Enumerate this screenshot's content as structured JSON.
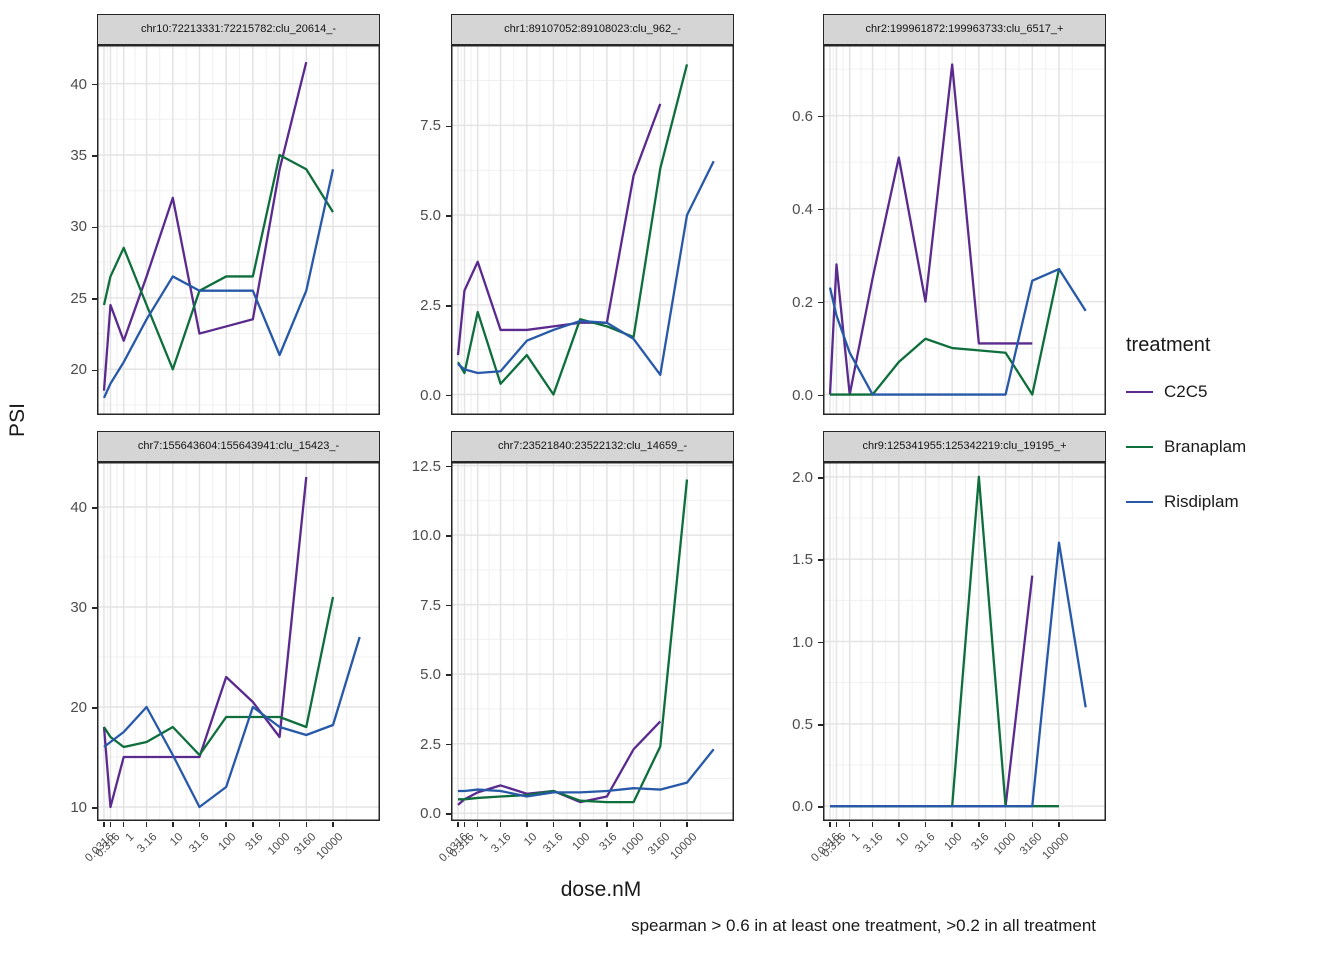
{
  "figure": {
    "ylabel": "PSI",
    "xlabel": "dose.nM",
    "caption": "spearman > 0.6 in at least one treatment, >0.2 in all treatment"
  },
  "legend": {
    "title": "treatment",
    "entries": [
      {
        "label": "C2C5",
        "color": "#5a2a8e"
      },
      {
        "label": "Branaplam",
        "color": "#0e6e3c"
      },
      {
        "label": "Risdiplam",
        "color": "#2759a8"
      }
    ]
  },
  "chart_data": {
    "type": "line",
    "x_scale": "pseudo-log (asinh)",
    "x": [
      0.0316,
      0.316,
      1,
      3.16,
      10,
      31.6,
      100,
      316,
      1000,
      3160,
      10000,
      31600
    ],
    "x_tick_labels": [
      "0.0316",
      "0.316",
      "1",
      "3.16",
      "10",
      "31.6",
      "100",
      "316",
      "1000",
      "3160",
      "10000"
    ],
    "xlabel": "dose.nM",
    "ylabel": "PSI",
    "legend_position": "right",
    "grid": "major and minor, light gray on white (theme_bw)",
    "panels": [
      {
        "title": "chr10:72213331:72215782:clu_20614_-",
        "ylim": [
          16.8,
          42.7
        ],
        "yticks": [
          20,
          25,
          30,
          35,
          40
        ],
        "ytick_labels": [
          "20",
          "25",
          "30",
          "35",
          "40"
        ],
        "series": [
          {
            "name": "C2C5",
            "values": [
              18.5,
              24.5,
              22,
              26.5,
              32,
              22.5,
              23,
              23.5,
              34,
              41.5,
              null,
              null
            ]
          },
          {
            "name": "Branaplam",
            "values": [
              24.5,
              26.5,
              28.5,
              24.5,
              20,
              25.5,
              26.5,
              26.5,
              35,
              34,
              31,
              null
            ]
          },
          {
            "name": "Risdiplam",
            "values": [
              18,
              19,
              20.5,
              23.5,
              26.5,
              25.5,
              25.5,
              25.5,
              21,
              25.5,
              34,
              null
            ]
          }
        ]
      },
      {
        "title": "chr1:89107052:89108023:clu_962_-",
        "ylim": [
          -0.57,
          9.74
        ],
        "yticks": [
          0,
          2.5,
          5,
          7.5
        ],
        "ytick_labels": [
          "0.0",
          "2.5",
          "5.0",
          "7.5"
        ],
        "series": [
          {
            "name": "C2C5",
            "values": [
              1.1,
              2.9,
              3.7,
              1.8,
              1.8,
              1.9,
              2.0,
              2.0,
              6.1,
              8.1,
              null,
              null
            ]
          },
          {
            "name": "Branaplam",
            "values": [
              0.9,
              0.6,
              2.3,
              0.3,
              1.1,
              0,
              2.1,
              1.9,
              1.6,
              6.3,
              9.2,
              null
            ]
          },
          {
            "name": "Risdiplam",
            "values": [
              0.85,
              0.7,
              0.6,
              0.65,
              1.5,
              1.8,
              2.05,
              2.0,
              1.55,
              0.55,
              5.0,
              6.5
            ]
          }
        ]
      },
      {
        "title": "chr2:199961872:199963733:clu_6517_+",
        "ylim": [
          -0.044,
          0.752
        ],
        "yticks": [
          0,
          0.2,
          0.4,
          0.6
        ],
        "ytick_labels": [
          "0.0",
          "0.2",
          "0.4",
          "0.6"
        ],
        "series": [
          {
            "name": "C2C5",
            "values": [
              0,
              0.28,
              0,
              0.25,
              0.51,
              0.2,
              0.71,
              0.11,
              0.11,
              0.11,
              null,
              null
            ]
          },
          {
            "name": "Branaplam",
            "values": [
              0,
              0,
              0,
              0,
              0.07,
              0.12,
              0.1,
              0.095,
              0.09,
              0,
              0.27,
              null
            ]
          },
          {
            "name": "Risdiplam",
            "values": [
              0.23,
              0.17,
              0.09,
              0,
              0,
              0,
              0,
              0,
              0,
              0.245,
              0.27,
              0.18
            ]
          }
        ]
      },
      {
        "title": "chr7:155643604:155643941:clu_15423_-",
        "ylim": [
          8.6,
          44.5
        ],
        "yticks": [
          10,
          20,
          30,
          40
        ],
        "ytick_labels": [
          "10",
          "20",
          "30",
          "40"
        ],
        "series": [
          {
            "name": "C2C5",
            "values": [
              18,
              10,
              15,
              15,
              15,
              15,
              23,
              20.5,
              17,
              43,
              null,
              null
            ]
          },
          {
            "name": "Branaplam",
            "values": [
              18,
              17,
              16,
              16.5,
              18,
              15.2,
              19,
              19,
              19,
              18,
              31,
              null
            ]
          },
          {
            "name": "Risdiplam",
            "values": [
              16,
              16.5,
              17.5,
              20,
              15.2,
              10,
              12,
              20,
              18,
              17.2,
              18.2,
              27
            ]
          }
        ]
      },
      {
        "title": "chr7:23521840:23522132:clu_14659_-",
        "ylim": [
          -0.28,
          12.63
        ],
        "yticks": [
          0,
          2.5,
          5,
          7.5,
          10,
          12.5
        ],
        "ytick_labels": [
          "0.0",
          "2.5",
          "5.0",
          "7.5",
          "10.0",
          "12.5"
        ],
        "series": [
          {
            "name": "C2C5",
            "values": [
              0.3,
              0.5,
              0.75,
              1.0,
              0.7,
              0.8,
              0.4,
              0.6,
              2.3,
              3.3,
              null,
              null
            ]
          },
          {
            "name": "Branaplam",
            "values": [
              0.5,
              0.5,
              0.55,
              0.6,
              0.65,
              0.8,
              0.45,
              0.4,
              0.4,
              2.4,
              12.0,
              null
            ]
          },
          {
            "name": "Risdiplam",
            "values": [
              0.8,
              0.8,
              0.85,
              0.8,
              0.6,
              0.75,
              0.75,
              0.8,
              0.9,
              0.85,
              1.1,
              2.3
            ]
          }
        ]
      },
      {
        "title": "chr9:125341955:125342219:clu_19195_+",
        "ylim": [
          -0.09,
          2.09
        ],
        "yticks": [
          0,
          0.5,
          1,
          1.5,
          2
        ],
        "ytick_labels": [
          "0.0",
          "0.5",
          "1.0",
          "1.5",
          "2.0"
        ],
        "series": [
          {
            "name": "C2C5",
            "values": [
              0,
              0,
              0,
              0,
              0,
              0,
              0,
              0,
              0,
              1.4,
              null,
              null
            ]
          },
          {
            "name": "Branaplam",
            "values": [
              0,
              0,
              0,
              0,
              0,
              0,
              0,
              2.0,
              0,
              0,
              0,
              null
            ]
          },
          {
            "name": "Risdiplam",
            "values": [
              0,
              0,
              0,
              0,
              0,
              0,
              0,
              0,
              0,
              0,
              1.6,
              0.6
            ]
          }
        ]
      }
    ]
  }
}
